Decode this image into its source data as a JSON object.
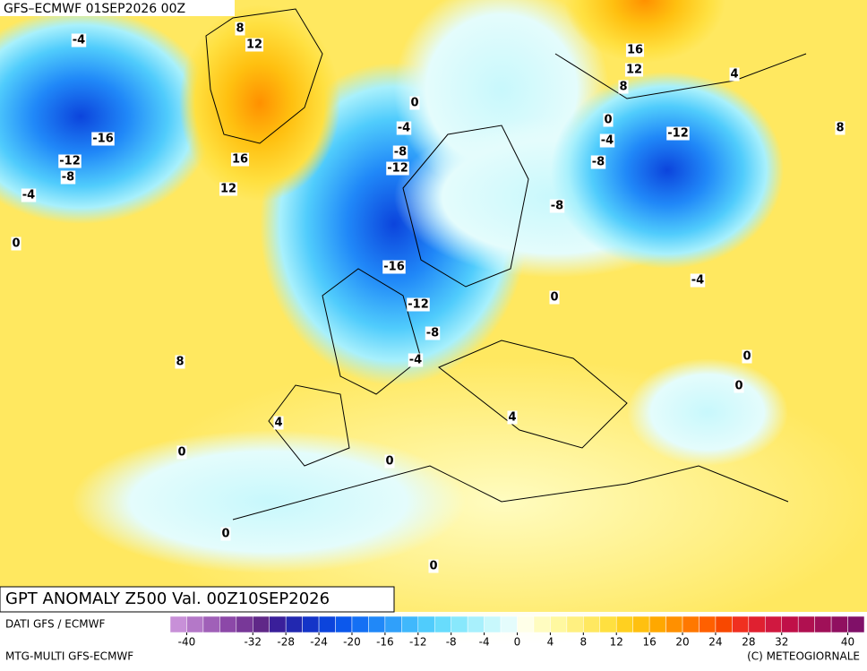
{
  "header": {
    "title": "GFS–ECMWF 01SEP2026 00Z"
  },
  "map": {
    "title": "GPT ANOMALY Z500 Val. 00Z10SEP2026",
    "contour_labels": [
      -4,
      8,
      12,
      -16,
      -12,
      -8,
      -4,
      0,
      16,
      12,
      0,
      -4,
      -8,
      -12,
      -16,
      -12,
      -8,
      -4,
      8,
      4,
      0,
      0,
      0,
      0,
      16,
      12,
      8,
      4,
      8,
      0,
      -4,
      -12,
      -8,
      -8,
      -4,
      0,
      0,
      0,
      4
    ]
  },
  "footer": {
    "source": "DATI GFS / ECMWF",
    "model": "MTG-MULTI GFS-ECMWF",
    "copyright": "(C) METEOGIORNALE"
  },
  "colorbar": {
    "lim": [
      -42,
      42
    ],
    "ticks": [
      -40,
      -32,
      -28,
      -24,
      -20,
      -16,
      -12,
      -8,
      -4,
      0,
      4,
      8,
      12,
      16,
      20,
      24,
      28,
      32,
      40
    ],
    "colors": [
      "#c890d8",
      "#b478c8",
      "#a060b8",
      "#8c48a8",
      "#783898",
      "#602888",
      "#3a1f9a",
      "#2228b0",
      "#1434c8",
      "#0c44dc",
      "#0c58ec",
      "#1470f4",
      "#2088f8",
      "#30a0fa",
      "#40b8fc",
      "#50ccfc",
      "#68dcfc",
      "#88e8fc",
      "#a8f0fc",
      "#c8f8fc",
      "#e4fcfc",
      "#ffffe8",
      "#fffcc0",
      "#fff8a0",
      "#fff080",
      "#ffe860",
      "#ffe040",
      "#ffd020",
      "#ffc010",
      "#ffa800",
      "#ff9000",
      "#ff7800",
      "#ff6000",
      "#f84800",
      "#f03020",
      "#e02030",
      "#d01840",
      "#c01048",
      "#b01050",
      "#a01058",
      "#901060",
      "#801068"
    ]
  }
}
